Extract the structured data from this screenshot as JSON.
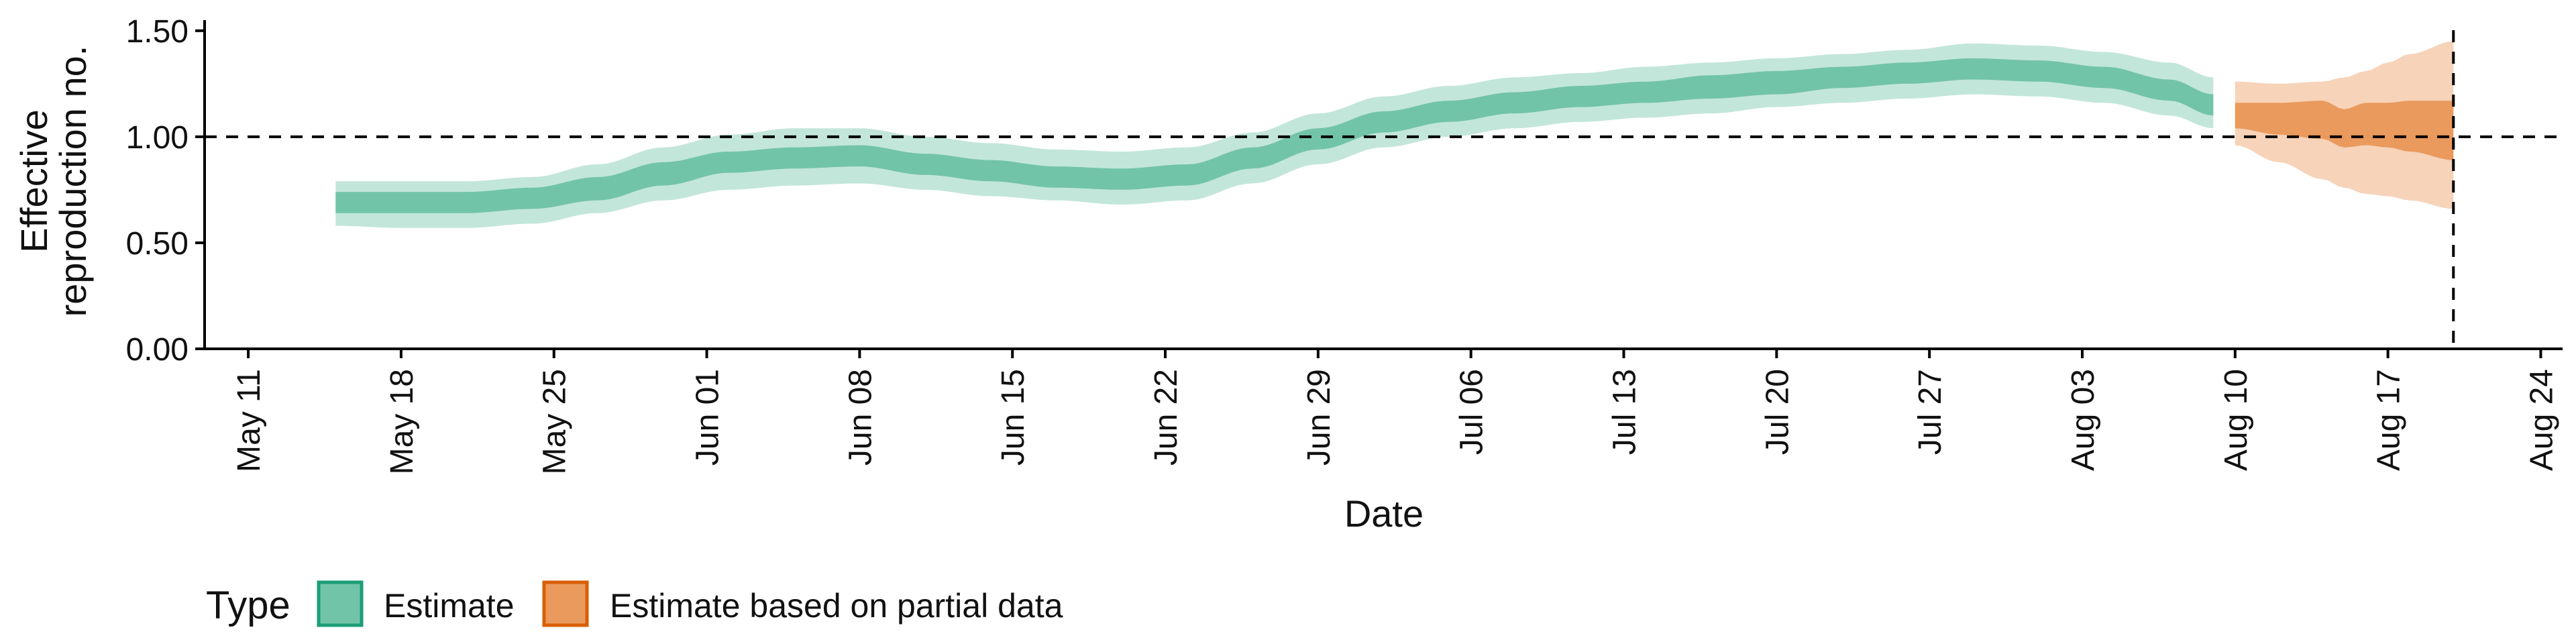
{
  "chart_data": {
    "type": "area",
    "title": "",
    "xlabel": "Date",
    "ylabel_lines": [
      "Effective",
      "reproduction no."
    ],
    "ylim": [
      0,
      1.55
    ],
    "yticks": [
      "0.00",
      "0.50",
      "1.00",
      "1.50"
    ],
    "xlim": [
      "2020-05-09",
      "2020-08-25"
    ],
    "xticks": [
      {
        "date": "2020-05-11",
        "label": "May 11"
      },
      {
        "date": "2020-05-18",
        "label": "May 18"
      },
      {
        "date": "2020-05-25",
        "label": "May 25"
      },
      {
        "date": "2020-06-01",
        "label": "Jun 01"
      },
      {
        "date": "2020-06-08",
        "label": "Jun 08"
      },
      {
        "date": "2020-06-15",
        "label": "Jun 15"
      },
      {
        "date": "2020-06-22",
        "label": "Jun 22"
      },
      {
        "date": "2020-06-29",
        "label": "Jun 29"
      },
      {
        "date": "2020-07-06",
        "label": "Jul 06"
      },
      {
        "date": "2020-07-13",
        "label": "Jul 13"
      },
      {
        "date": "2020-07-20",
        "label": "Jul 20"
      },
      {
        "date": "2020-07-27",
        "label": "Jul 27"
      },
      {
        "date": "2020-08-03",
        "label": "Aug 03"
      },
      {
        "date": "2020-08-10",
        "label": "Aug 10"
      },
      {
        "date": "2020-08-17",
        "label": "Aug 17"
      },
      {
        "date": "2020-08-24",
        "label": "Aug 24"
      }
    ],
    "reference_line_y": 1.0,
    "reference_line_x": "2020-08-20",
    "grid": false,
    "legend": {
      "title": "Type",
      "placement": "bottom-left",
      "entries": [
        {
          "name": "Estimate",
          "color": "#1b9e77"
        },
        {
          "name": "Estimate based on partial data",
          "color": "#d95f02"
        }
      ]
    },
    "series": [
      {
        "name": "Estimate",
        "color": "#1b9e77",
        "x": [
          "2020-05-15",
          "2020-05-18",
          "2020-05-21",
          "2020-05-24",
          "2020-05-27",
          "2020-05-30",
          "2020-06-02",
          "2020-06-05",
          "2020-06-08",
          "2020-06-11",
          "2020-06-14",
          "2020-06-17",
          "2020-06-20",
          "2020-06-23",
          "2020-06-26",
          "2020-06-29",
          "2020-07-02",
          "2020-07-05",
          "2020-07-08",
          "2020-07-11",
          "2020-07-14",
          "2020-07-17",
          "2020-07-20",
          "2020-07-23",
          "2020-07-26",
          "2020-07-29",
          "2020-08-01",
          "2020-08-04",
          "2020-08-07",
          "2020-08-09"
        ],
        "lower90": [
          0.58,
          0.57,
          0.57,
          0.59,
          0.64,
          0.7,
          0.75,
          0.77,
          0.78,
          0.75,
          0.72,
          0.7,
          0.68,
          0.7,
          0.78,
          0.87,
          0.95,
          1.0,
          1.04,
          1.07,
          1.09,
          1.11,
          1.14,
          1.16,
          1.18,
          1.2,
          1.19,
          1.16,
          1.1,
          1.04
        ],
        "lower50": [
          0.64,
          0.64,
          0.64,
          0.66,
          0.7,
          0.77,
          0.83,
          0.85,
          0.86,
          0.82,
          0.79,
          0.76,
          0.75,
          0.77,
          0.85,
          0.94,
          1.02,
          1.07,
          1.11,
          1.14,
          1.16,
          1.18,
          1.2,
          1.23,
          1.25,
          1.27,
          1.26,
          1.23,
          1.17,
          1.1
        ],
        "upper50": [
          0.74,
          0.74,
          0.74,
          0.76,
          0.81,
          0.88,
          0.93,
          0.95,
          0.96,
          0.92,
          0.89,
          0.86,
          0.85,
          0.87,
          0.95,
          1.04,
          1.12,
          1.17,
          1.21,
          1.24,
          1.26,
          1.29,
          1.31,
          1.33,
          1.35,
          1.37,
          1.36,
          1.33,
          1.27,
          1.2
        ],
        "upper90": [
          0.79,
          0.79,
          0.79,
          0.81,
          0.87,
          0.95,
          1.01,
          1.04,
          1.04,
          1.0,
          0.97,
          0.94,
          0.93,
          0.95,
          1.02,
          1.11,
          1.19,
          1.24,
          1.28,
          1.3,
          1.33,
          1.35,
          1.37,
          1.39,
          1.41,
          1.44,
          1.43,
          1.4,
          1.35,
          1.28
        ]
      },
      {
        "name": "Estimate based on partial data",
        "color": "#d95f02",
        "x": [
          "2020-08-10",
          "2020-08-12",
          "2020-08-14",
          "2020-08-15",
          "2020-08-16",
          "2020-08-17",
          "2020-08-18",
          "2020-08-20"
        ],
        "lower90": [
          0.96,
          0.88,
          0.8,
          0.76,
          0.73,
          0.72,
          0.7,
          0.66
        ],
        "lower50": [
          1.04,
          1.01,
          0.99,
          0.95,
          0.96,
          0.95,
          0.93,
          0.89
        ],
        "upper50": [
          1.16,
          1.16,
          1.17,
          1.13,
          1.16,
          1.16,
          1.17,
          1.17
        ],
        "upper90": [
          1.26,
          1.25,
          1.26,
          1.28,
          1.31,
          1.35,
          1.39,
          1.45
        ]
      }
    ]
  }
}
